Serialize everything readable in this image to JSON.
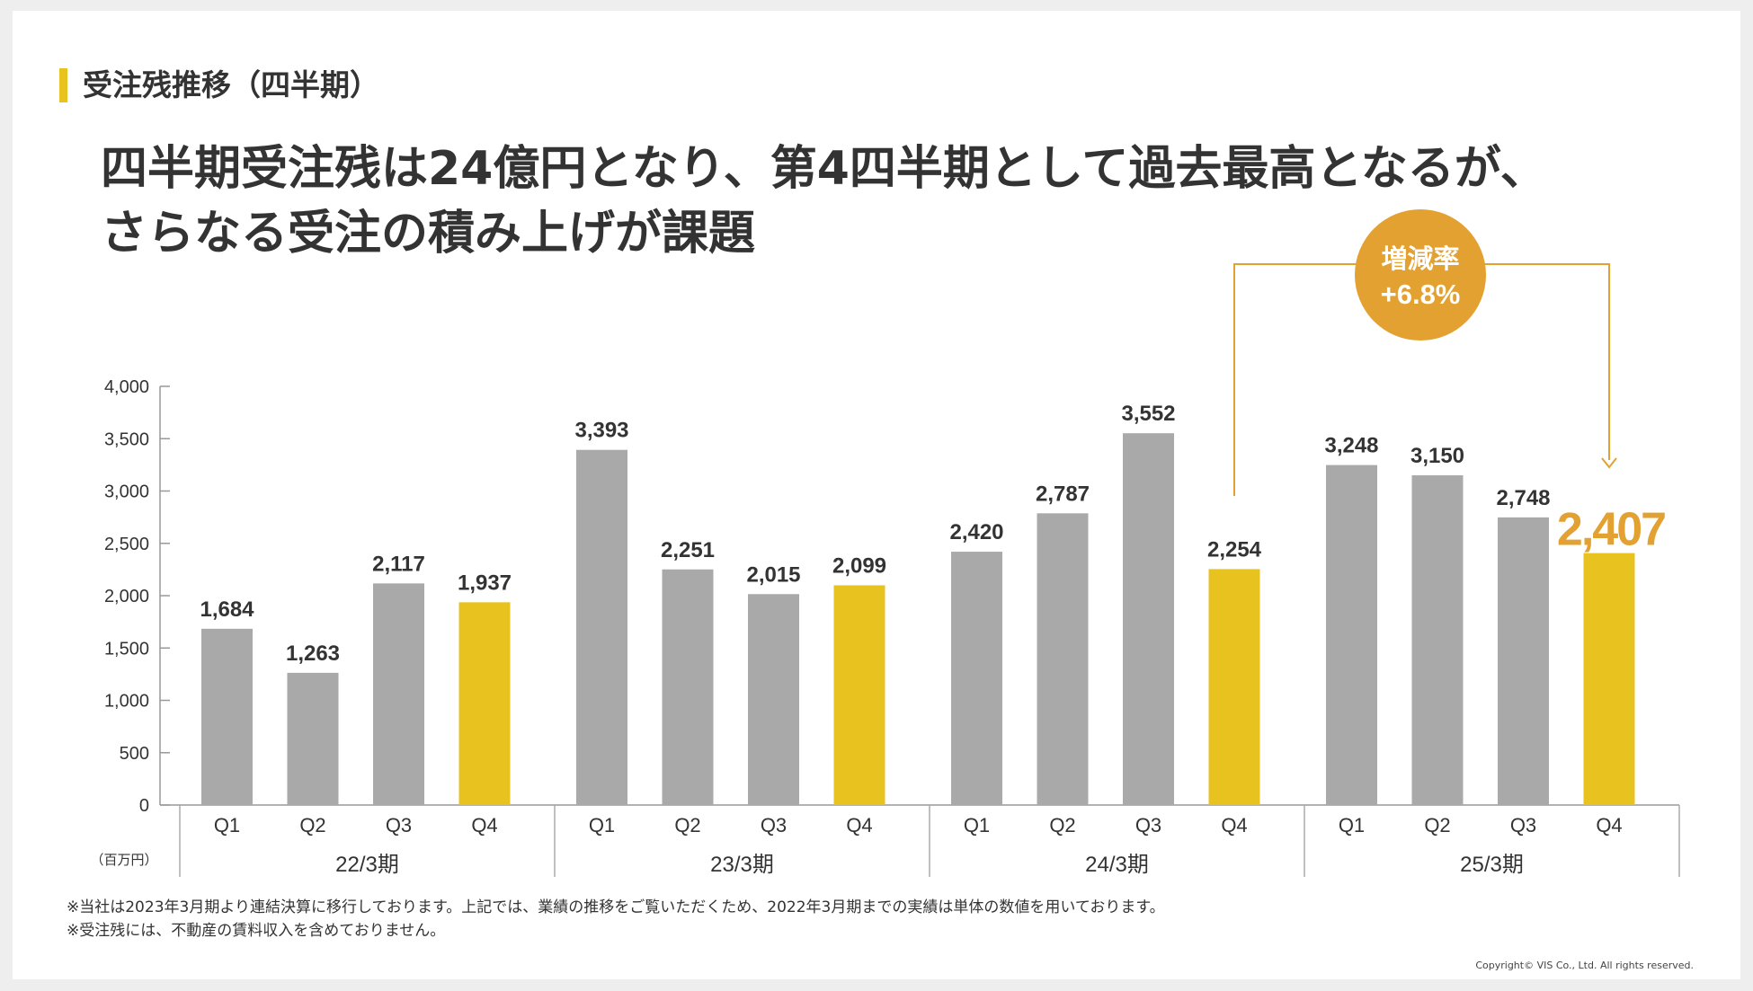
{
  "section_title": "受注残推移（四半期）",
  "headline": {
    "line1": "四半期受注残は24億円となり、第4四半期として過去最高となるが、",
    "line2": "さらなる受注の積み上げが課題"
  },
  "notes": [
    "※当社は2023年3月期より連結決算に移行しております。上記では、業績の推移をご覧いただくため、2022年3月期までの実績は単体の数値を用いております。",
    "※受注残には、不動産の賃料収入を含めておりません。"
  ],
  "copyright": "Copyright© VIS Co., Ltd. All rights reserved.",
  "colors": {
    "gray_bar": "#a9a9a9",
    "yellow_bar": "#e8c21f",
    "accent_orange": "#e3a132",
    "text": "#333333"
  },
  "chart_data": {
    "type": "bar",
    "unit_label": "（百万円）",
    "ylim": [
      0,
      4000
    ],
    "yticks": [
      0,
      500,
      1000,
      1500,
      2000,
      2500,
      3000,
      3500,
      4000
    ],
    "ytick_labels": [
      "0",
      "500",
      "1,000",
      "1,500",
      "2,000",
      "2,500",
      "3,000",
      "3,500",
      "4,000"
    ],
    "groups": [
      {
        "label": "22/3期",
        "bars": [
          {
            "quarter": "Q1",
            "value": 1684,
            "label": "1,684"
          },
          {
            "quarter": "Q2",
            "value": 1263,
            "label": "1,263"
          },
          {
            "quarter": "Q3",
            "value": 2117,
            "label": "2,117"
          },
          {
            "quarter": "Q4",
            "value": 1937,
            "label": "1,937"
          }
        ]
      },
      {
        "label": "23/3期",
        "bars": [
          {
            "quarter": "Q1",
            "value": 3393,
            "label": "3,393"
          },
          {
            "quarter": "Q2",
            "value": 2251,
            "label": "2,251"
          },
          {
            "quarter": "Q3",
            "value": 2015,
            "label": "2,015"
          },
          {
            "quarter": "Q4",
            "value": 2099,
            "label": "2,099"
          }
        ]
      },
      {
        "label": "24/3期",
        "bars": [
          {
            "quarter": "Q1",
            "value": 2420,
            "label": "2,420"
          },
          {
            "quarter": "Q2",
            "value": 2787,
            "label": "2,787"
          },
          {
            "quarter": "Q3",
            "value": 3552,
            "label": "3,552"
          },
          {
            "quarter": "Q4",
            "value": 2254,
            "label": "2,254"
          }
        ]
      },
      {
        "label": "25/3期",
        "bars": [
          {
            "quarter": "Q1",
            "value": 3248,
            "label": "3,248"
          },
          {
            "quarter": "Q2",
            "value": 3150,
            "label": "3,150"
          },
          {
            "quarter": "Q3",
            "value": 2748,
            "label": "2,748"
          },
          {
            "quarter": "Q4",
            "value": 2407,
            "label": "2,407"
          }
        ]
      }
    ],
    "highlight": {
      "quarter": "Q4",
      "color": "yellow"
    },
    "callout": {
      "title": "増減率",
      "value": "+6.8%",
      "from": "24/3期 Q4",
      "to": "25/3期 Q4"
    }
  }
}
